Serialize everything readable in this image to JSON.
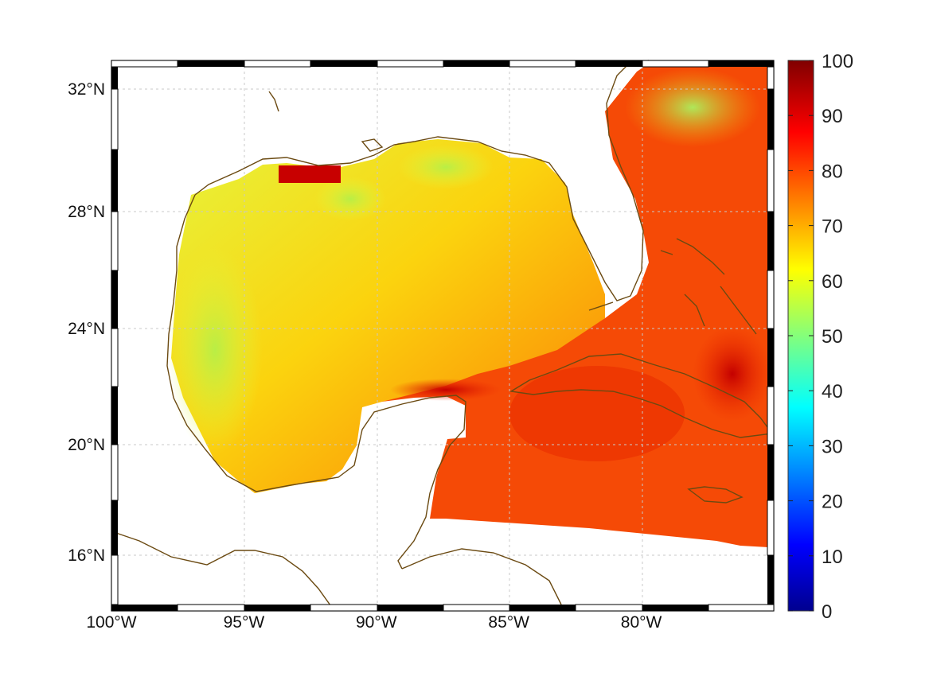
{
  "map": {
    "type": "heatmap",
    "lon_range": [
      -100,
      -75
    ],
    "lat_range": [
      14.2,
      33
    ],
    "lon_ticks": [
      {
        "value": -100,
        "label": "100°W"
      },
      {
        "value": -95,
        "label": "95°W"
      },
      {
        "value": -90,
        "label": "90°W"
      },
      {
        "value": -85,
        "label": "85°W"
      },
      {
        "value": -80,
        "label": "80°W"
      }
    ],
    "lat_ticks": [
      {
        "value": 16,
        "label": "16°N"
      },
      {
        "value": 20,
        "label": "20°N"
      },
      {
        "value": 24,
        "label": "24°N"
      },
      {
        "value": 28,
        "label": "28°N"
      },
      {
        "value": 32,
        "label": "32°N"
      }
    ],
    "grid": true,
    "coastline_color": "#6b4a12",
    "frame": "black-white graduated border"
  },
  "colorbar": {
    "min": 0,
    "max": 100,
    "ticks": [
      {
        "value": 0,
        "label": "0"
      },
      {
        "value": 10,
        "label": "10"
      },
      {
        "value": 20,
        "label": "20"
      },
      {
        "value": 30,
        "label": "30"
      },
      {
        "value": 40,
        "label": "40"
      },
      {
        "value": 50,
        "label": "50"
      },
      {
        "value": 60,
        "label": "60"
      },
      {
        "value": 70,
        "label": "70"
      },
      {
        "value": 80,
        "label": "80"
      },
      {
        "value": 90,
        "label": "90"
      },
      {
        "value": 100,
        "label": "100"
      }
    ],
    "colormap": "jet",
    "stops": [
      "#00008f",
      "#0000ff",
      "#00ffff",
      "#ffff00",
      "#ff0000",
      "#800000"
    ]
  },
  "chart_data": {
    "type": "heatmap",
    "value_range": [
      0,
      100
    ],
    "regions": [
      {
        "area": "western Gulf shelf",
        "approx_value": 55
      },
      {
        "area": "central Gulf",
        "approx_value": 68
      },
      {
        "area": "eastern Gulf",
        "approx_value": 62
      },
      {
        "area": "southern Gulf / Campeche",
        "approx_value": 78
      },
      {
        "area": "Caribbean / Cuba region",
        "approx_value": 85
      },
      {
        "area": "east of Cuba",
        "approx_value": 95
      },
      {
        "area": "Atlantic off Florida",
        "approx_value": 80
      },
      {
        "area": "Atlantic northeast",
        "approx_value": 60
      }
    ]
  }
}
